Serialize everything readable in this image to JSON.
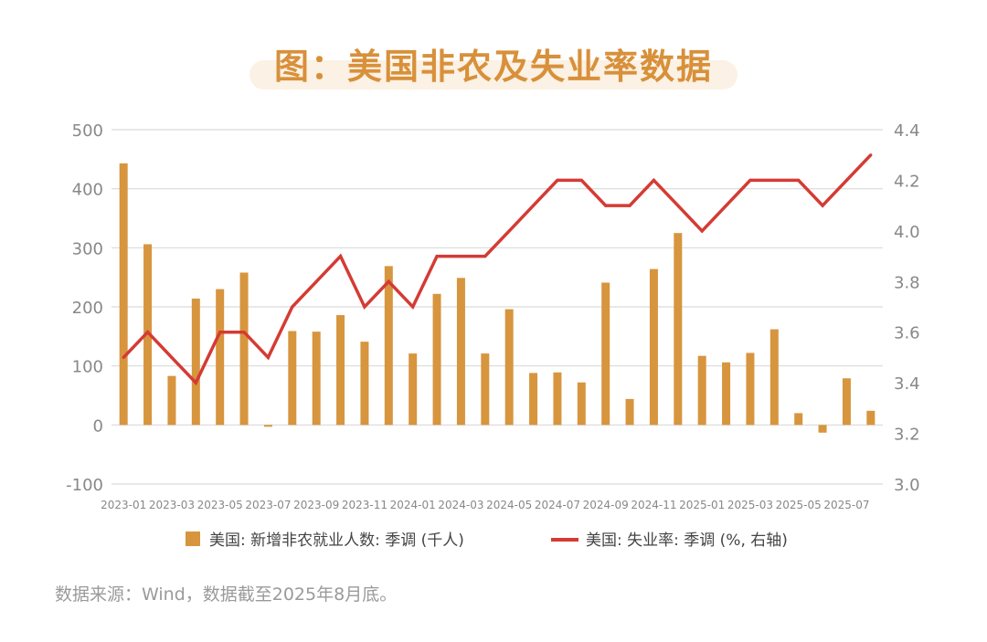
{
  "title": "图：美国非农及失业率数据",
  "source": "数据来源：Wind，数据截至2025年8月底。",
  "colors": {
    "bar": "#d7953e",
    "line": "#d43b34",
    "grid": "#d9d9d9",
    "tick": "#888888"
  },
  "chart_data": {
    "type": "bar",
    "categories": [
      "2023-01",
      "2023-02",
      "2023-03",
      "2023-04",
      "2023-05",
      "2023-06",
      "2023-07",
      "2023-08",
      "2023-09",
      "2023-10",
      "2023-11",
      "2023-12",
      "2024-01",
      "2024-02",
      "2024-03",
      "2024-04",
      "2024-05",
      "2024-06",
      "2024-07",
      "2024-08",
      "2024-09",
      "2024-10",
      "2024-11",
      "2024-12",
      "2025-01",
      "2025-02",
      "2025-03",
      "2025-04",
      "2025-05",
      "2025-06",
      "2025-07",
      "2025-08"
    ],
    "x_tick_labels": [
      "2023-01",
      "2023-03",
      "2023-05",
      "2023-07",
      "2023-09",
      "2023-11",
      "2024-01",
      "2024-03",
      "2024-05",
      "2024-07",
      "2024-09",
      "2024-11",
      "2025-01",
      "2025-03",
      "2025-05",
      "2025-07"
    ],
    "series": [
      {
        "name": "美国: 新增非农就业人数: 季调 (千人)",
        "type": "bar",
        "axis": "left",
        "values": [
          443,
          306,
          83,
          214,
          230,
          258,
          -3,
          159,
          158,
          186,
          141,
          269,
          121,
          222,
          249,
          121,
          196,
          88,
          89,
          72,
          241,
          44,
          264,
          325,
          117,
          106,
          122,
          162,
          20,
          -13,
          79,
          24
        ]
      },
      {
        "name": "美国: 失业率: 季调 (%, 右轴)",
        "type": "line",
        "axis": "right",
        "values": [
          3.5,
          3.6,
          3.5,
          3.4,
          3.6,
          3.6,
          3.5,
          3.7,
          3.8,
          3.9,
          3.7,
          3.8,
          3.7,
          3.9,
          3.9,
          3.9,
          4.0,
          4.1,
          4.2,
          4.2,
          4.1,
          4.1,
          4.2,
          4.1,
          4.0,
          4.1,
          4.2,
          4.2,
          4.2,
          4.1,
          4.2,
          4.3
        ]
      }
    ],
    "y_left": {
      "min": -100,
      "max": 500,
      "ticks": [
        -100,
        0,
        100,
        200,
        300,
        400,
        500
      ]
    },
    "y_right": {
      "min": 3.0,
      "max": 4.4,
      "ticks": [
        "3.0",
        "3.2",
        "3.4",
        "3.6",
        "3.8",
        "4.0",
        "4.2",
        "4.4"
      ]
    },
    "grid": true,
    "legend_position": "bottom"
  }
}
